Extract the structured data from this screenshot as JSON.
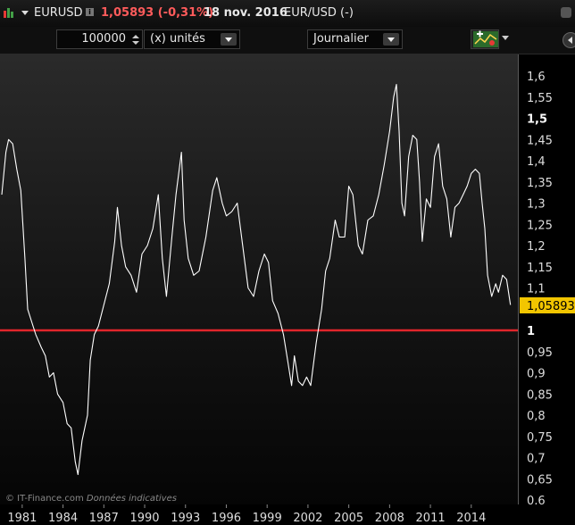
{
  "header": {
    "symbol": "EURUSD",
    "info_icon": "i",
    "price_change": "1,05893 (-0,31%)",
    "date": "18 nov. 2016",
    "pair_label": "EUR/USD (-)"
  },
  "toolbar": {
    "quantity": "100000",
    "units": "(x) unités",
    "period": "Journalier"
  },
  "icons": [
    "app-logo-icon",
    "menu-caret-icon",
    "info-icon",
    "spin-up-icon",
    "spin-down-icon",
    "chevron-down-icon",
    "indicator-tool-icon",
    "nav-left-icon"
  ],
  "colors": {
    "line": "#ffffff",
    "reference_line": "#e0252b",
    "price_tag": "#f2c500",
    "change_negative": "#ff5b5b"
  },
  "watermark": {
    "source": "© IT-Finance.com",
    "note": "Données indicatives"
  },
  "chart_data": {
    "type": "line",
    "title": "",
    "xlabel": "",
    "ylabel": "",
    "x_ticks": [
      "1981",
      "1984",
      "1987",
      "1990",
      "1993",
      "1996",
      "1999",
      "2002",
      "2005",
      "2008",
      "2011",
      "2014"
    ],
    "y_ticks": [
      "1,6",
      "1,55",
      "1,5",
      "1,45",
      "1,4",
      "1,35",
      "1,3",
      "1,25",
      "1,2",
      "1,15",
      "1,1",
      "1",
      "0,95",
      "0,9",
      "0,85",
      "0,8",
      "0,75",
      "0,7",
      "0,65",
      "0,6"
    ],
    "y_ticks_bold": [
      "1,5",
      "1"
    ],
    "ylim": [
      0.6,
      1.6
    ],
    "xlim": [
      1979.5,
      2016.9
    ],
    "last_value_label": "1,05893",
    "last_value": 1.05893,
    "reference_line": 1.0,
    "grid": false,
    "series": [
      {
        "x": [
          1979.5,
          1979.8,
          1980.0,
          1980.3,
          1980.6,
          1980.9,
          1981.2,
          1981.4,
          1981.7,
          1982.0,
          1982.4,
          1982.7,
          1983.0,
          1983.3,
          1983.6,
          1984.0,
          1984.3,
          1984.6,
          1984.9,
          1985.1,
          1985.4,
          1985.8,
          1986.0,
          1986.3,
          1986.6,
          1987.0,
          1987.4,
          1987.8,
          1988.0,
          1988.3,
          1988.6,
          1989.0,
          1989.4,
          1989.8,
          1990.2,
          1990.6,
          1991.0,
          1991.3,
          1991.6,
          1992.0,
          1992.3,
          1992.7,
          1992.9,
          1993.2,
          1993.6,
          1994.0,
          1994.5,
          1995.0,
          1995.3,
          1995.7,
          1996.0,
          1996.4,
          1996.8,
          1997.2,
          1997.6,
          1998.0,
          1998.4,
          1998.8,
          1999.1,
          1999.4,
          1999.8,
          2000.2,
          2000.5,
          2000.8,
          2001.0,
          2001.3,
          2001.6,
          2001.9,
          2002.2,
          2002.6,
          2003.0,
          2003.3,
          2003.6,
          2004.0,
          2004.3,
          2004.7,
          2005.0,
          2005.3,
          2005.7,
          2006.0,
          2006.4,
          2006.8,
          2007.2,
          2007.6,
          2008.0,
          2008.3,
          2008.5,
          2008.7,
          2008.9,
          2009.1,
          2009.4,
          2009.7,
          2010.0,
          2010.2,
          2010.4,
          2010.7,
          2011.0,
          2011.3,
          2011.6,
          2011.9,
          2012.2,
          2012.5,
          2012.8,
          2013.1,
          2013.4,
          2013.7,
          2014.0,
          2014.3,
          2014.6,
          2014.8,
          2015.0,
          2015.2,
          2015.5,
          2015.8,
          2016.0,
          2016.3,
          2016.6,
          2016.88
        ],
        "values": [
          1.32,
          1.42,
          1.45,
          1.44,
          1.38,
          1.33,
          1.17,
          1.05,
          1.02,
          0.99,
          0.96,
          0.94,
          0.89,
          0.9,
          0.85,
          0.83,
          0.78,
          0.77,
          0.69,
          0.66,
          0.74,
          0.8,
          0.93,
          0.99,
          1.01,
          1.06,
          1.11,
          1.21,
          1.29,
          1.2,
          1.15,
          1.13,
          1.09,
          1.18,
          1.2,
          1.24,
          1.32,
          1.17,
          1.08,
          1.22,
          1.32,
          1.42,
          1.26,
          1.17,
          1.13,
          1.14,
          1.22,
          1.33,
          1.36,
          1.3,
          1.27,
          1.28,
          1.3,
          1.2,
          1.1,
          1.08,
          1.14,
          1.18,
          1.16,
          1.07,
          1.04,
          0.99,
          0.93,
          0.87,
          0.94,
          0.88,
          0.87,
          0.89,
          0.87,
          0.97,
          1.05,
          1.14,
          1.17,
          1.26,
          1.22,
          1.22,
          1.34,
          1.32,
          1.2,
          1.18,
          1.26,
          1.27,
          1.32,
          1.39,
          1.47,
          1.55,
          1.58,
          1.47,
          1.3,
          1.27,
          1.41,
          1.46,
          1.45,
          1.35,
          1.21,
          1.31,
          1.29,
          1.41,
          1.44,
          1.34,
          1.31,
          1.22,
          1.29,
          1.3,
          1.32,
          1.34,
          1.37,
          1.38,
          1.37,
          1.3,
          1.24,
          1.13,
          1.08,
          1.11,
          1.09,
          1.13,
          1.12,
          1.06
        ]
      }
    ]
  }
}
